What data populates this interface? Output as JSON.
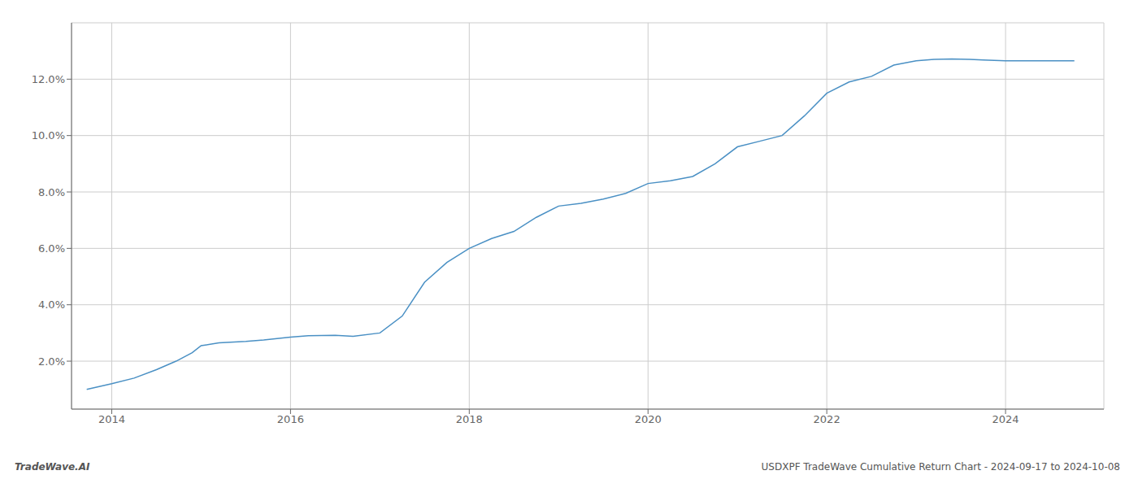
{
  "chart_data": {
    "type": "line",
    "x": [
      2013.72,
      2014.0,
      2014.25,
      2014.5,
      2014.72,
      2014.9,
      2015.0,
      2015.2,
      2015.5,
      2015.7,
      2016.0,
      2016.2,
      2016.5,
      2016.7,
      2017.0,
      2017.25,
      2017.5,
      2017.75,
      2018.0,
      2018.25,
      2018.5,
      2018.75,
      2019.0,
      2019.25,
      2019.5,
      2019.75,
      2020.0,
      2020.25,
      2020.5,
      2020.75,
      2021.0,
      2021.25,
      2021.5,
      2021.75,
      2022.0,
      2022.25,
      2022.5,
      2022.75,
      2023.0,
      2023.2,
      2023.4,
      2023.6,
      2023.75,
      2024.0,
      2024.77
    ],
    "values": [
      1.0,
      1.2,
      1.4,
      1.7,
      2.0,
      2.3,
      2.55,
      2.65,
      2.7,
      2.75,
      2.85,
      2.9,
      2.92,
      2.88,
      3.0,
      3.6,
      4.8,
      5.5,
      6.0,
      6.35,
      6.6,
      7.1,
      7.5,
      7.6,
      7.75,
      7.95,
      8.3,
      8.4,
      8.55,
      9.0,
      9.6,
      9.8,
      10.0,
      10.7,
      11.5,
      11.9,
      12.1,
      12.5,
      12.65,
      12.7,
      12.72,
      12.7,
      12.68,
      12.65,
      12.65
    ],
    "color": "#4a90c4",
    "xlim": [
      2013.55,
      2025.1
    ],
    "xticks": [
      2014,
      2016,
      2018,
      2020,
      2022,
      2024
    ],
    "ylim": [
      0.3,
      14.0
    ],
    "yticks": [
      {
        "value": 2.0,
        "label": "2.0%"
      },
      {
        "value": 4.0,
        "label": "4.0%"
      },
      {
        "value": 6.0,
        "label": "6.0%"
      },
      {
        "value": 8.0,
        "label": "8.0%"
      },
      {
        "value": 10.0,
        "label": "10.0%"
      },
      {
        "value": 12.0,
        "label": "12.0%"
      }
    ],
    "grid": true,
    "annotations": [
      "TradeWave.AI",
      "USDXPF TradeWave Cumulative Return Chart - 2024-09-17 to 2024-10-08"
    ]
  }
}
